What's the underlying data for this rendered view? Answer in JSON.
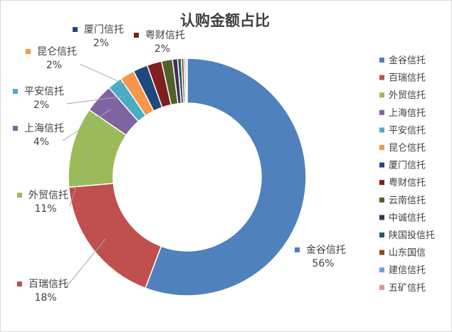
{
  "chart_data": {
    "type": "pie",
    "title": "认购金额占比",
    "categories": [
      "金谷信托",
      "百瑞信托",
      "外贸信托",
      "上海信托",
      "平安信托",
      "昆仑信托",
      "厦门信托",
      "粤财信托",
      "云南信托",
      "中诚信托",
      "陕国投信托",
      "山东国信",
      "建信信托",
      "五矿信托"
    ],
    "values": [
      56,
      18,
      11,
      4,
      2,
      2,
      2,
      2,
      1.5,
      0.7,
      0.5,
      0.35,
      0.25,
      0.2
    ],
    "colors": [
      "#4f81bd",
      "#c0504d",
      "#9bbb59",
      "#8064a2",
      "#4bacc6",
      "#f79646",
      "#1f497d",
      "#7f1f1f",
      "#4f6228",
      "#3f3151",
      "#215967",
      "#974806",
      "#6d9fd8",
      "#d99694"
    ],
    "data_labels": [
      {
        "name": "金谷信托",
        "value": "56%"
      },
      {
        "name": "百瑞信托",
        "value": "18%"
      },
      {
        "name": "外贸信托",
        "value": "11%"
      },
      {
        "name": "上海信托",
        "value": "4%"
      },
      {
        "name": "平安信托",
        "value": "2%"
      },
      {
        "name": "昆仑信托",
        "value": "2%"
      },
      {
        "name": "厦门信托",
        "value": "2%"
      },
      {
        "name": "粤财信托",
        "value": "2%"
      }
    ],
    "legend_position": "right"
  }
}
